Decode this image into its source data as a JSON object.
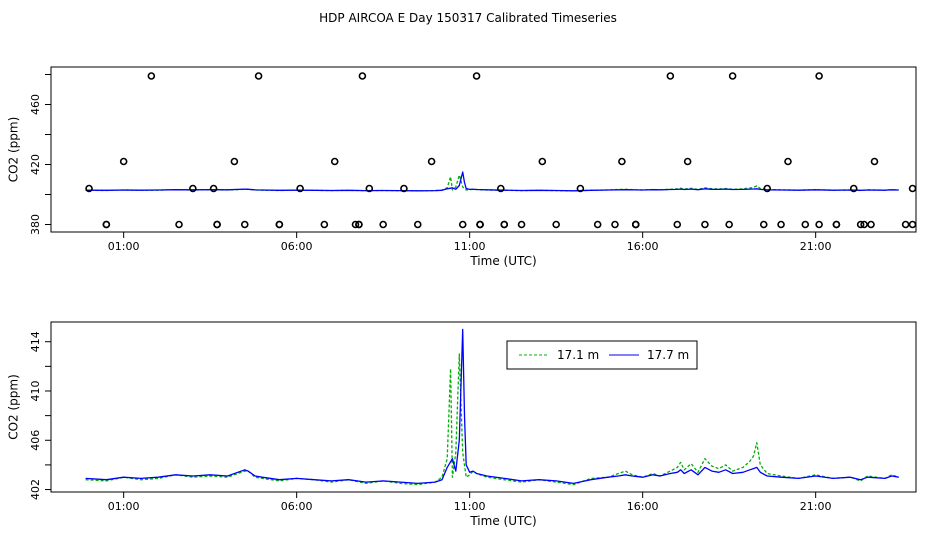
{
  "title": "HDP AIRCOA E  Day 150317  Calibrated Timeseries",
  "chart_data": [
    {
      "type": "scatter",
      "title": "",
      "xlabel": "Time (UTC)",
      "ylabel": "CO2 (ppm)",
      "xlim": [
        -1.1,
        23.9
      ],
      "ylim": [
        375,
        485
      ],
      "x_ticks": [
        1,
        6,
        11,
        16,
        21
      ],
      "x_tick_labels": [
        "01:00",
        "06:00",
        "11:00",
        "16:00",
        "21:00"
      ],
      "y_ticks": [
        380,
        420,
        460
      ],
      "y_tick_labels": [
        "380",
        "420",
        "460"
      ],
      "y_minor_step": 20,
      "grid": false,
      "calibration_points": {
        "marker": "open-circle",
        "x": [
          0.5,
          0.5,
          2.6,
          3.7,
          3.7,
          4.5,
          5.5,
          5.5,
          6.8,
          7.7,
          7.8,
          7.8,
          8.5,
          9.5,
          10.8,
          11.3,
          11.3,
          11.3,
          12.0,
          12.0,
          12.5,
          13.5,
          14.7,
          15.2,
          15.8,
          15.8,
          15.8,
          17.0,
          17.8,
          18.5,
          19.5,
          20.0,
          20.7,
          21.1,
          21.6,
          21.6,
          22.3,
          22.4,
          22.6,
          23.6,
          23.8,
          0.0,
          1.0,
          1.8,
          3.6,
          3.0,
          4.2,
          4.9,
          6.1,
          7.1,
          7.9,
          8.1,
          9.1,
          9.9,
          11.2,
          11.9,
          13.1,
          14.2,
          15.4,
          16.8,
          17.3,
          18.6,
          19.6,
          20.2,
          21.1,
          22.1,
          22.7,
          23.8
        ],
        "y": [
          380,
          380,
          380,
          380,
          380,
          380,
          380,
          380,
          380,
          380,
          380,
          380,
          380,
          380,
          380,
          380,
          380,
          380,
          380,
          380,
          380,
          380,
          380,
          380,
          380,
          380,
          380,
          380,
          380,
          380,
          380,
          380,
          380,
          380,
          380,
          380,
          380,
          380,
          380,
          380,
          380,
          404,
          422,
          479,
          404,
          404,
          422,
          479,
          404,
          422,
          479,
          404,
          404,
          422,
          479,
          404,
          422,
          404,
          422,
          479,
          422,
          479,
          404,
          422,
          479,
          404,
          422,
          404
        ],
        "color": "#000000"
      },
      "series": [
        {
          "id": "s17_1",
          "color": "#00b000",
          "dash": "3 2",
          "role": "17.1 m"
        },
        {
          "id": "s17_7",
          "color": "#0000ff",
          "dash": "",
          "role": "17.7 m"
        }
      ]
    },
    {
      "type": "line",
      "title": "",
      "xlabel": "Time (UTC)",
      "ylabel": "CO2 (ppm)",
      "xlim": [
        -1.1,
        23.9
      ],
      "ylim": [
        401.8,
        415.6
      ],
      "x_ticks": [
        1,
        6,
        11,
        16,
        21
      ],
      "x_tick_labels": [
        "01:00",
        "06:00",
        "11:00",
        "16:00",
        "21:00"
      ],
      "y_ticks": [
        402,
        406,
        410,
        414
      ],
      "y_tick_labels": [
        "402",
        "406",
        "410",
        "414"
      ],
      "y_minor_step": 2,
      "grid": false,
      "legend": {
        "placement": "top-right",
        "entries": [
          {
            "label": "17.1 m",
            "color": "#00b000",
            "dash": "3 2"
          },
          {
            "label": "17.7 m",
            "color": "#0000ff",
            "dash": ""
          }
        ]
      },
      "series": [
        {
          "name": "17.1 m",
          "color": "#00b000",
          "dash": "3 2",
          "x": [
            -0.1,
            0.5,
            1.0,
            1.5,
            2.0,
            2.5,
            3.0,
            3.5,
            4.0,
            4.5,
            4.6,
            4.8,
            5.0,
            5.5,
            6.0,
            6.5,
            7.0,
            7.5,
            8.0,
            8.5,
            9.0,
            9.5,
            10.0,
            10.2,
            10.35,
            10.45,
            10.5,
            10.6,
            10.7,
            10.8,
            10.9,
            11.0,
            11.1,
            11.2,
            11.5,
            12.0,
            12.5,
            13.0,
            13.5,
            14.0,
            14.5,
            15.0,
            15.3,
            15.5,
            15.7,
            16.0,
            16.3,
            16.5,
            16.8,
            17.0,
            17.1,
            17.2,
            17.4,
            17.6,
            17.8,
            18.0,
            18.2,
            18.4,
            18.6,
            18.9,
            19.1,
            19.2,
            19.3,
            19.4,
            19.6,
            20.0,
            20.5,
            21.0,
            21.5,
            22.0,
            22.3,
            22.5,
            23.0,
            23.2,
            23.4
          ],
          "y": [
            402.8,
            402.7,
            403.0,
            402.8,
            402.9,
            403.2,
            403.0,
            403.1,
            403.0,
            403.5,
            403.5,
            403.0,
            402.9,
            402.7,
            402.9,
            402.8,
            402.6,
            402.8,
            402.5,
            402.7,
            402.5,
            402.4,
            402.6,
            403.0,
            404.5,
            411.8,
            403.0,
            405.0,
            413.0,
            405.0,
            403.0,
            403.2,
            403.5,
            403.3,
            403.0,
            402.8,
            402.6,
            402.8,
            402.6,
            402.4,
            402.9,
            403.0,
            403.3,
            403.5,
            403.2,
            403.0,
            403.3,
            403.1,
            403.5,
            403.8,
            404.2,
            403.6,
            404.1,
            403.4,
            404.5,
            403.9,
            403.7,
            404.0,
            403.5,
            403.8,
            404.3,
            404.7,
            405.8,
            404.0,
            403.3,
            403.1,
            402.9,
            403.2,
            402.9,
            403.0,
            402.7,
            403.1,
            402.9,
            403.2,
            403.0
          ]
        },
        {
          "name": "17.7 m",
          "color": "#0000ff",
          "dash": "",
          "x": [
            -0.1,
            0.5,
            1.0,
            1.5,
            2.0,
            2.5,
            3.0,
            3.5,
            4.0,
            4.5,
            4.6,
            4.8,
            5.0,
            5.5,
            6.0,
            6.5,
            7.0,
            7.5,
            8.0,
            8.5,
            9.0,
            9.5,
            10.0,
            10.2,
            10.35,
            10.5,
            10.6,
            10.7,
            10.8,
            10.85,
            10.9,
            11.0,
            11.1,
            11.2,
            11.5,
            12.0,
            12.5,
            13.0,
            13.5,
            14.0,
            14.5,
            15.0,
            15.3,
            15.5,
            15.7,
            16.0,
            16.3,
            16.5,
            16.8,
            17.0,
            17.1,
            17.2,
            17.4,
            17.6,
            17.8,
            18.0,
            18.2,
            18.4,
            18.6,
            18.9,
            19.1,
            19.2,
            19.3,
            19.4,
            19.6,
            20.0,
            20.5,
            21.0,
            21.5,
            22.0,
            22.3,
            22.5,
            23.0,
            23.2,
            23.4
          ],
          "y": [
            402.9,
            402.8,
            403.0,
            402.9,
            403.0,
            403.2,
            403.1,
            403.2,
            403.1,
            403.6,
            403.5,
            403.1,
            403.0,
            402.8,
            402.9,
            402.8,
            402.7,
            402.8,
            402.6,
            402.7,
            402.6,
            402.5,
            402.6,
            402.8,
            403.8,
            404.5,
            403.5,
            406.0,
            415.0,
            408.0,
            404.0,
            403.4,
            403.5,
            403.3,
            403.1,
            402.9,
            402.7,
            402.8,
            402.7,
            402.5,
            402.8,
            403.0,
            403.1,
            403.2,
            403.1,
            403.0,
            403.2,
            403.1,
            403.3,
            403.4,
            403.6,
            403.3,
            403.6,
            403.2,
            403.8,
            403.5,
            403.4,
            403.6,
            403.3,
            403.4,
            403.6,
            403.7,
            403.8,
            403.4,
            403.1,
            403.0,
            402.9,
            403.1,
            402.9,
            403.0,
            402.8,
            403.0,
            402.9,
            403.1,
            403.0
          ]
        }
      ]
    }
  ]
}
